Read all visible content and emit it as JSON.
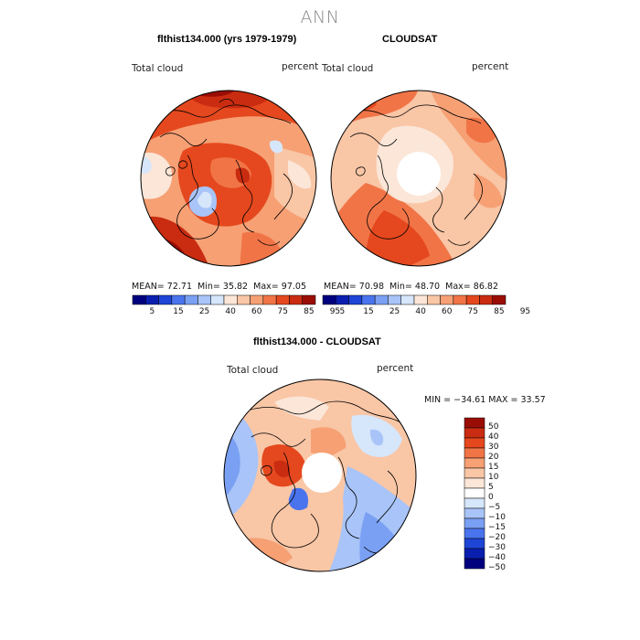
{
  "title": "ANN",
  "panels": [
    {
      "title": "flthist134.000 (yrs 1979-1979)",
      "left_label": "Total cloud",
      "right_label": "percent",
      "stats": {
        "mean_label": "MEAN=",
        "mean": "72.71",
        "min_label": "Min=",
        "min": "35.82",
        "max_label": "Max=",
        "max": "97.05"
      },
      "colorbar": {
        "labels": [
          "5",
          "15",
          "25",
          "40",
          "60",
          "75",
          "85",
          "95"
        ]
      }
    },
    {
      "title": "CLOUDSAT",
      "left_label": "Total cloud",
      "right_label": "percent",
      "stats": {
        "mean_label": "MEAN=",
        "mean": "70.98",
        "min_label": "Min=",
        "min": "48.70",
        "max_label": "Max=",
        "max": "86.82"
      },
      "colorbar": {
        "labels": [
          "5",
          "15",
          "25",
          "40",
          "60",
          "75",
          "85",
          "95"
        ]
      }
    },
    {
      "title": "flthist134.000 - CLOUDSAT",
      "left_label": "Total cloud",
      "right_label": "percent",
      "minmax": "MIN = −34.61 MAX =  33.57",
      "colorbar": {
        "labels": [
          "50",
          "40",
          "30",
          "20",
          "15",
          "10",
          "5",
          "0",
          "−5",
          "−10",
          "−15",
          "−20",
          "−30",
          "−40",
          "−50"
        ]
      }
    }
  ],
  "colors": {
    "sequential": [
      "#00007f",
      "#0a1fb0",
      "#1e45d6",
      "#4a74ee",
      "#7aa0f4",
      "#a8c4f8",
      "#d6e6fb",
      "#fbe6d8",
      "#f9c6a6",
      "#f6a074",
      "#f17447",
      "#e5481e",
      "#c92c10",
      "#9a0d05"
    ],
    "diverging": [
      "#9a0d05",
      "#c92c10",
      "#e5481e",
      "#f17447",
      "#f6a074",
      "#f9c6a6",
      "#fbe6d8",
      "#ffffff",
      "#d6e6fb",
      "#a8c4f8",
      "#7aa0f4",
      "#4a74ee",
      "#1e45d6",
      "#0a1fb0",
      "#00007f"
    ]
  }
}
